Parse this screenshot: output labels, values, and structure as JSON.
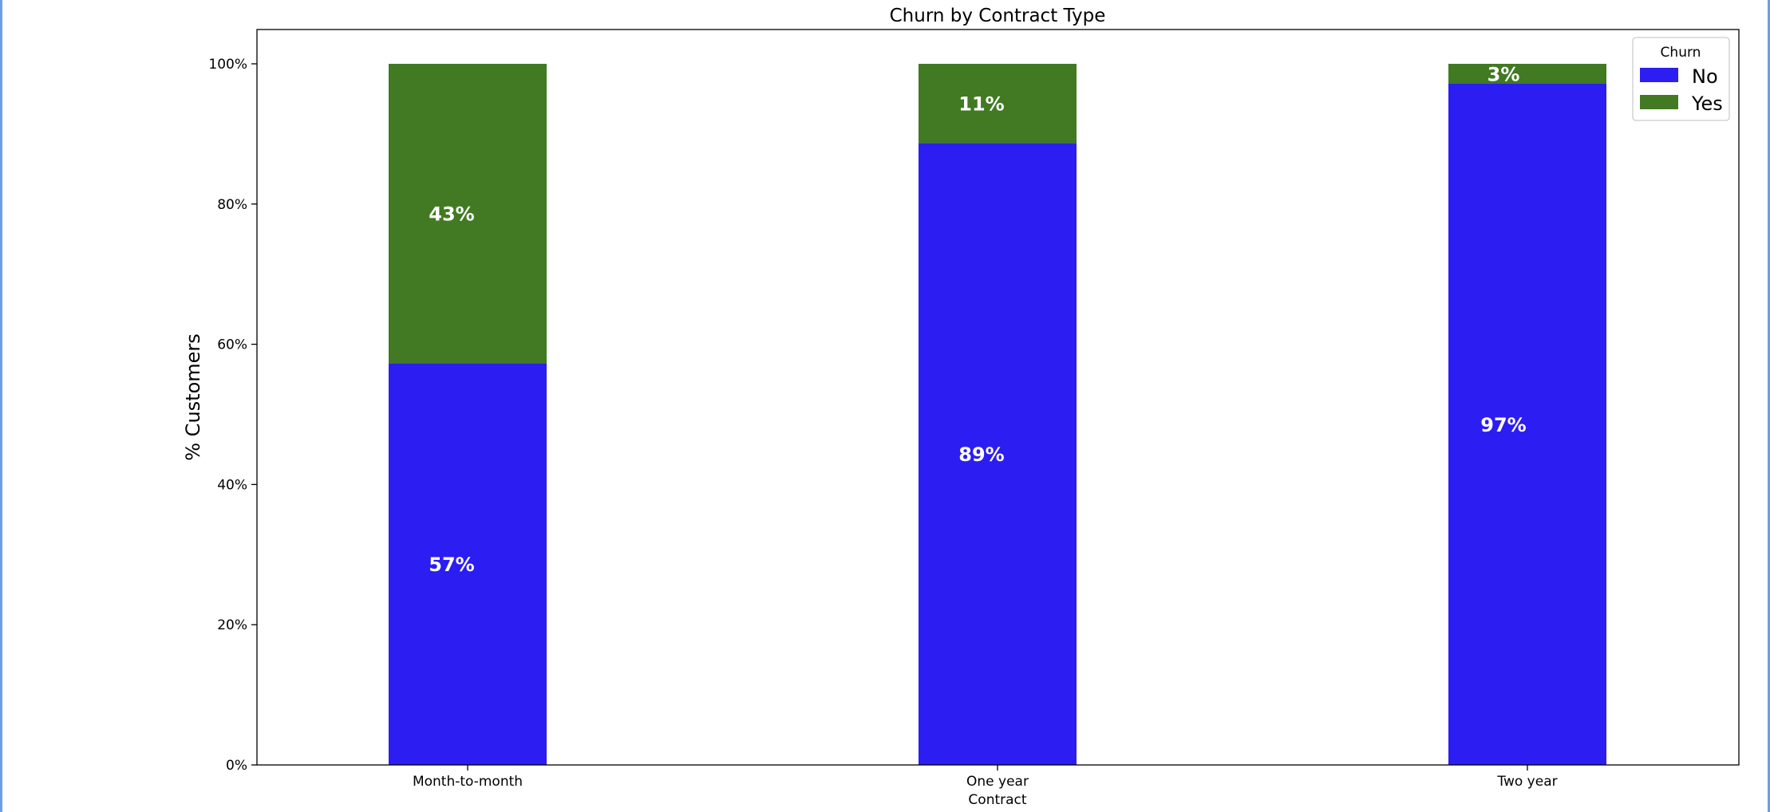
{
  "chart_data": {
    "type": "bar",
    "stacked": true,
    "title": "Churn by Contract Type",
    "xlabel": "Contract",
    "ylabel": "% Customers",
    "ylim": [
      0,
      1.05
    ],
    "yticks": [
      0,
      0.2,
      0.4,
      0.6,
      0.8,
      1.0
    ],
    "ytick_labels": [
      "0%",
      "20%",
      "40%",
      "60%",
      "80%",
      "100%"
    ],
    "categories": [
      "Month-to-month",
      "One year",
      "Two year"
    ],
    "series": [
      {
        "name": "No",
        "color": "#2c1df2",
        "values": [
          0.573,
          0.887,
          0.972
        ],
        "labels": [
          "57%",
          "89%",
          "97%"
        ]
      },
      {
        "name": "Yes",
        "color": "#417a22",
        "values": [
          0.427,
          0.113,
          0.028
        ],
        "labels": [
          "43%",
          "11%",
          "3%"
        ]
      }
    ],
    "legend": {
      "title": "Churn",
      "position": "top-right",
      "entries": [
        "No",
        "Yes"
      ]
    },
    "grid": false
  }
}
